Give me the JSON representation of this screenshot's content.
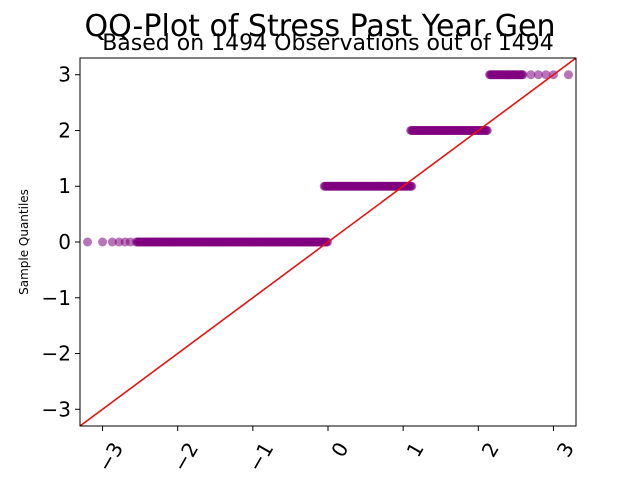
{
  "chart_data": {
    "type": "scatter",
    "title": "QQ-Plot of Stress Past Year Gen",
    "subtitle": "Based on 1494 Observations out of 1494",
    "xlabel": "",
    "ylabel": "Sample Quantiles",
    "xlim": [
      -3.3,
      3.3
    ],
    "ylim": [
      -3.3,
      3.3
    ],
    "xticks": [
      -3,
      -2,
      -1,
      0,
      1,
      2,
      3
    ],
    "yticks": [
      -3,
      -2,
      -1,
      0,
      1,
      2,
      3
    ],
    "xtick_labels": [
      "−3",
      "−2",
      "−1",
      "0",
      "1",
      "2",
      "3"
    ],
    "ytick_labels": [
      "−3",
      "−2",
      "−1",
      "0",
      "1",
      "2",
      "3"
    ],
    "grid": false,
    "point_color": "#800080",
    "point_alpha": 0.55,
    "line_color": "#e8120f",
    "reference_line": {
      "type": "y=x",
      "from": -3.3,
      "to": 3.3
    },
    "series": [
      {
        "y": 0,
        "dense_x_range": [
          -2.55,
          0.0
        ],
        "sparse_x": [
          -3.2,
          -3.0,
          -2.87,
          -2.78,
          -2.7,
          -2.63
        ]
      },
      {
        "y": 1,
        "dense_x_range": [
          -0.05,
          1.12
        ],
        "sparse_x": []
      },
      {
        "y": 2,
        "dense_x_range": [
          1.1,
          2.12
        ],
        "sparse_x": []
      },
      {
        "y": 3,
        "dense_x_range": [
          2.15,
          2.6
        ],
        "sparse_x": [
          2.7,
          2.8,
          2.9,
          3.0,
          3.2
        ]
      }
    ]
  }
}
